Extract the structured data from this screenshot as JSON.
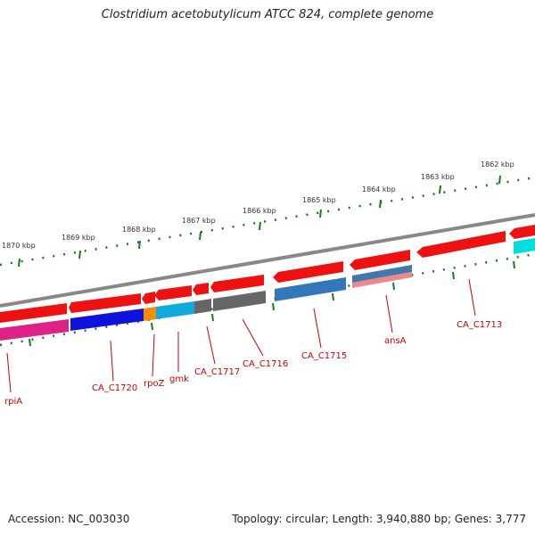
{
  "title": "Clostridium acetobutylicum ATCC 824, complete genome",
  "footer": {
    "accession": "Accession: NC_003030",
    "stats": "Topology: circular; Length: 3,940,880 bp; Genes: 3,777"
  },
  "scale_labels": [
    "1862 kbp",
    "1863 kbp",
    "1864 kbp",
    "1865 kbp",
    "1866 kbp",
    "1867 kbp",
    "1868 kbp",
    "1869 kbp",
    "1870 kbp"
  ],
  "colors": {
    "backbone": "#888888",
    "tick": "#1a7a1a",
    "label": "#cc0000",
    "forward_gene": "#ee1111",
    "rpiA": "#dd2288",
    "CA_C1720": "#1111dd",
    "rpoZ": "#ff8800",
    "gmk": "#11aadd",
    "CA_C1717": "#666666",
    "CA_C1716": "#666666",
    "CA_C1715": "#3377bb",
    "ansA_top": "#4477aa",
    "ansA_bottom": "#ee8888",
    "cyan_gene": "#00dddd"
  },
  "gene_labels": [
    "rpiA",
    "CA_C1720",
    "rpoZ",
    "gmk",
    "CA_C1717",
    "CA_C1716",
    "CA_C1715",
    "ansA",
    "CA_C1713"
  ]
}
